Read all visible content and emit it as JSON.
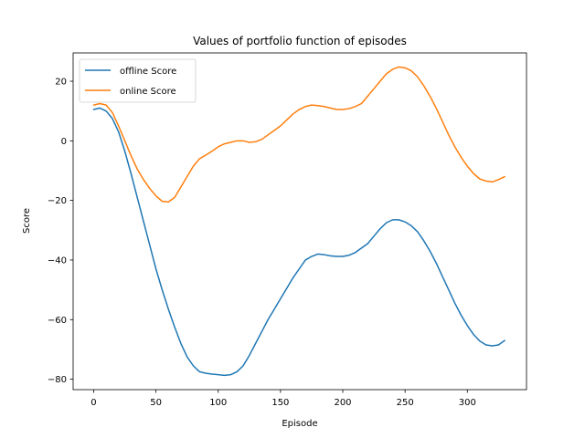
{
  "chart_data": {
    "type": "line",
    "title": "Values of portfolio function of episodes",
    "xlabel": "Episode",
    "ylabel": "Score",
    "xlim": [
      -16.5,
      347.5
    ],
    "ylim": [
      -83.5,
      29.5
    ],
    "xticks": [
      0,
      50,
      100,
      150,
      200,
      250,
      300
    ],
    "yticks": [
      -80,
      -60,
      -40,
      -20,
      0,
      20
    ],
    "grid": false,
    "legend_position": "upper-left",
    "series": [
      {
        "name": "offline Score",
        "color": "#1f77b4",
        "x": [
          0,
          5,
          10,
          15,
          20,
          25,
          30,
          35,
          40,
          45,
          50,
          55,
          60,
          65,
          70,
          75,
          80,
          85,
          90,
          95,
          100,
          105,
          110,
          115,
          120,
          125,
          130,
          135,
          140,
          145,
          150,
          155,
          160,
          165,
          170,
          175,
          180,
          185,
          190,
          195,
          200,
          205,
          210,
          215,
          220,
          225,
          230,
          235,
          240,
          245,
          250,
          255,
          260,
          265,
          270,
          275,
          280,
          285,
          290,
          295,
          300,
          305,
          310,
          315,
          320,
          325,
          330
        ],
        "values": [
          10.5,
          11,
          10,
          7.5,
          3,
          -3.5,
          -11,
          -19,
          -27,
          -35,
          -43,
          -50,
          -56.5,
          -62.5,
          -68,
          -72.5,
          -75.5,
          -77.5,
          -78,
          -78.3,
          -78.5,
          -78.7,
          -78.5,
          -77.5,
          -75.5,
          -72,
          -68,
          -64,
          -60,
          -56.5,
          -53,
          -49.5,
          -46,
          -43,
          -40,
          -38.8,
          -38,
          -38.2,
          -38.6,
          -38.8,
          -38.8,
          -38.4,
          -37.5,
          -36,
          -34.5,
          -32,
          -29.5,
          -27.5,
          -26.5,
          -26.5,
          -27.2,
          -28.5,
          -30.5,
          -33.5,
          -37,
          -41,
          -45.5,
          -50,
          -54.5,
          -58.5,
          -62,
          -65,
          -67.2,
          -68.5,
          -68.8,
          -68.5,
          -67
        ]
      },
      {
        "name": "online Score",
        "color": "#ff7f0e",
        "x": [
          0,
          5,
          10,
          15,
          20,
          25,
          30,
          35,
          40,
          45,
          50,
          55,
          60,
          65,
          70,
          75,
          80,
          85,
          90,
          95,
          100,
          105,
          110,
          115,
          120,
          125,
          130,
          135,
          140,
          145,
          150,
          155,
          160,
          165,
          170,
          175,
          180,
          185,
          190,
          195,
          200,
          205,
          210,
          215,
          220,
          225,
          230,
          235,
          240,
          245,
          250,
          255,
          260,
          265,
          270,
          275,
          280,
          285,
          290,
          295,
          300,
          305,
          310,
          315,
          320,
          325,
          330
        ],
        "values": [
          12,
          12.5,
          12,
          9.5,
          5,
          0,
          -5,
          -9.5,
          -13,
          -16,
          -18.5,
          -20.3,
          -20.5,
          -19,
          -15.5,
          -12,
          -8.5,
          -6,
          -4.8,
          -3.5,
          -2,
          -1,
          -0.5,
          0,
          0,
          -0.5,
          -0.3,
          0.5,
          2,
          3.5,
          5,
          7,
          9,
          10.5,
          11.5,
          12,
          11.8,
          11.5,
          11,
          10.5,
          10.5,
          10.8,
          11.5,
          12.5,
          15,
          17.5,
          20,
          22.5,
          24,
          24.8,
          24.5,
          23.5,
          21.5,
          18.5,
          15,
          11,
          6.5,
          2,
          -2,
          -5.5,
          -8.5,
          -11,
          -12.8,
          -13.5,
          -13.8,
          -13,
          -12
        ]
      }
    ]
  }
}
